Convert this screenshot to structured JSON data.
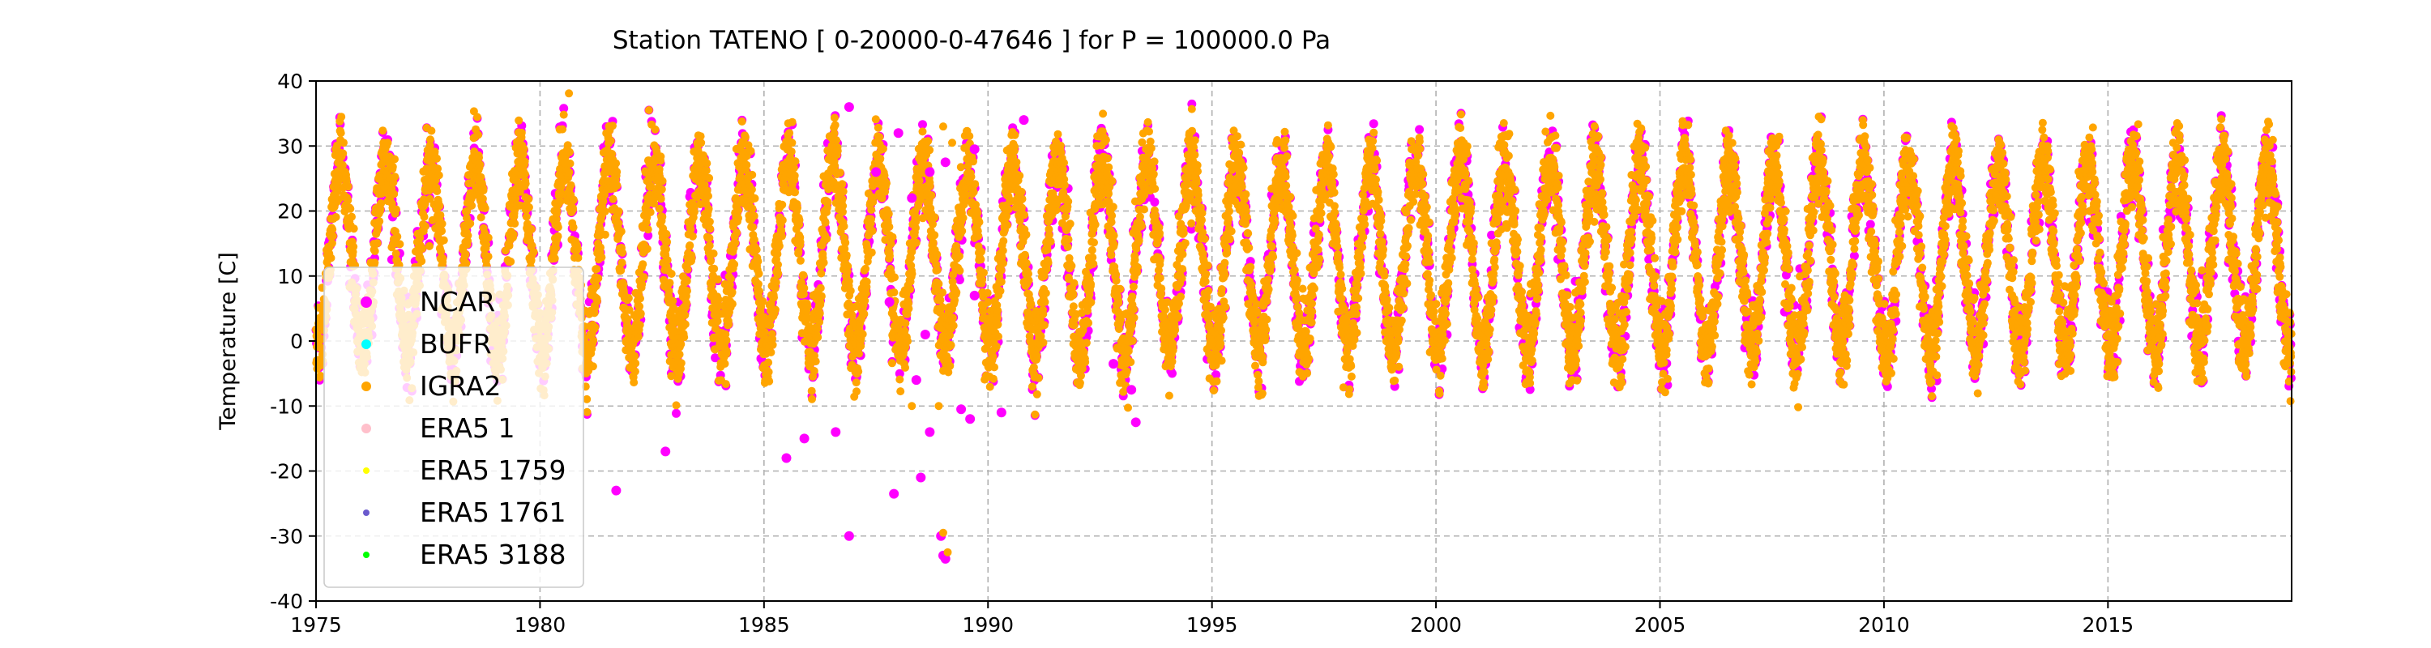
{
  "chart_data": {
    "type": "scatter",
    "title": "Station  TATENO [ 0-20000-0-47646 ]  for P = 100000.0 Pa",
    "xlabel": "",
    "ylabel": "Temperature [C]",
    "xlim": [
      1975,
      2019.1
    ],
    "ylim": [
      -40,
      40
    ],
    "x_ticks": [
      1975,
      1980,
      1985,
      1990,
      1995,
      2000,
      2005,
      2010,
      2015
    ],
    "y_ticks": [
      -40,
      -30,
      -20,
      -10,
      0,
      10,
      20,
      30,
      40
    ],
    "grid": true,
    "legend_position": "center-left",
    "series": [
      {
        "name": "NCAR",
        "color": "#ff00ff",
        "marker_size": "large"
      },
      {
        "name": "BUFR",
        "color": "#00ffff",
        "marker_size": "medium"
      },
      {
        "name": "IGRA2",
        "color": "#ffa500",
        "marker_size": "medium"
      },
      {
        "name": "ERA5 1",
        "color": "#ffc0cb",
        "marker_size": "medium"
      },
      {
        "name": "ERA5 1759",
        "color": "#ffff00",
        "marker_size": "small"
      },
      {
        "name": "ERA5 1761",
        "color": "#6a5acd",
        "marker_size": "small"
      },
      {
        "name": "ERA5 3188",
        "color": "#00ff00",
        "marker_size": "small"
      }
    ],
    "seasonal_cycle": {
      "annual_mean": 13,
      "annual_amplitude": 14.5,
      "noise_sd": 3.2
    },
    "outliers": [
      {
        "x": 1981.7,
        "y": -23
      },
      {
        "x": 1982.8,
        "y": -17
      },
      {
        "x": 1985.5,
        "y": -18
      },
      {
        "x": 1985.9,
        "y": -15
      },
      {
        "x": 1986.6,
        "y": -14
      },
      {
        "x": 1986.9,
        "y": -30
      },
      {
        "x": 1987.9,
        "y": -23.5
      },
      {
        "x": 1988.5,
        "y": -21
      },
      {
        "x": 1988.7,
        "y": -14
      },
      {
        "x": 1988.95,
        "y": -30
      },
      {
        "x": 1989.0,
        "y": -33
      },
      {
        "x": 1989.05,
        "y": -33.5
      },
      {
        "x": 1989.4,
        "y": -10.5
      },
      {
        "x": 1989.6,
        "y": -12
      },
      {
        "x": 1990.3,
        "y": -11
      },
      {
        "x": 1988.0,
        "y": 32
      },
      {
        "x": 1988.7,
        "y": 26
      },
      {
        "x": 1989.05,
        "y": 27.5
      },
      {
        "x": 1986.9,
        "y": 36
      },
      {
        "x": 1987.5,
        "y": 26
      },
      {
        "x": 1988.3,
        "y": 22
      },
      {
        "x": 1989.7,
        "y": 29.5
      },
      {
        "x": 1990.8,
        "y": 34
      },
      {
        "x": 1987.8,
        "y": 6
      },
      {
        "x": 1988.4,
        "y": -6
      },
      {
        "x": 1993.2,
        "y": -7.5
      },
      {
        "x": 1993.3,
        "y": -12.5
      },
      {
        "x": 1992.8,
        "y": -3.5
      },
      {
        "x": 1988.6,
        "y": 1
      },
      {
        "x": 1989.7,
        "y": 7
      }
    ],
    "igra2_outliers": [
      {
        "x": 1989.0,
        "y": -29.5
      },
      {
        "x": 1989.1,
        "y": -32.5
      },
      {
        "x": 1989.0,
        "y": 33
      },
      {
        "x": 1989.2,
        "y": 30.5
      },
      {
        "x": 1988.3,
        "y": -10
      },
      {
        "x": 1988.9,
        "y": -10
      }
    ]
  }
}
